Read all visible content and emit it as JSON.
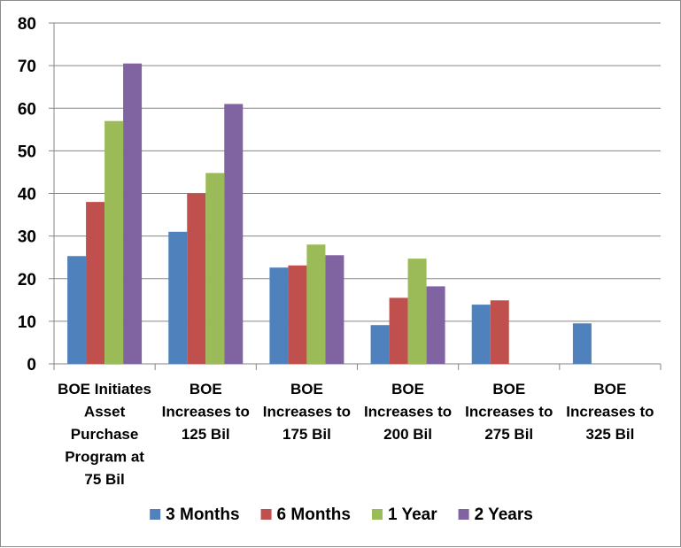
{
  "chart_data": {
    "type": "bar",
    "title": "",
    "xlabel": "",
    "ylabel": "",
    "ylim": [
      0,
      80
    ],
    "yticks": [
      0,
      10,
      20,
      30,
      40,
      50,
      60,
      70,
      80
    ],
    "grid": true,
    "legend_position": "bottom",
    "categories": [
      "BOE Initiates Asset Purchase Program at 75 Bil",
      "BOE Increases to 125 Bil",
      "BOE Increases to 175 Bil",
      "BOE Increases to 200 Bil",
      "BOE Increases to 275 Bil",
      "BOE Increases to 325 Bil"
    ],
    "category_lines": [
      [
        "BOE Initiates",
        "Asset",
        "Purchase",
        "Program at",
        "75 Bil"
      ],
      [
        "BOE",
        "Increases to",
        "125 Bil"
      ],
      [
        "BOE",
        "Increases to",
        "175 Bil"
      ],
      [
        "BOE",
        "Increases to",
        "200 Bil"
      ],
      [
        "BOE",
        "Increases to",
        "275 Bil"
      ],
      [
        "BOE",
        "Increases to",
        "325 Bil"
      ]
    ],
    "series": [
      {
        "name": "3 Months",
        "color": "#4F81BD",
        "values": [
          25.3,
          31.0,
          22.6,
          9.1,
          13.9,
          9.5
        ]
      },
      {
        "name": "6 Months",
        "color": "#C0504D",
        "values": [
          38.0,
          40.0,
          23.1,
          15.5,
          14.9,
          null
        ]
      },
      {
        "name": "1 Year",
        "color": "#9BBB59",
        "values": [
          57.0,
          44.8,
          28.0,
          24.7,
          null,
          null
        ]
      },
      {
        "name": "2 Years",
        "color": "#8064A2",
        "values": [
          70.5,
          61.0,
          25.5,
          18.2,
          null,
          null
        ]
      }
    ]
  }
}
